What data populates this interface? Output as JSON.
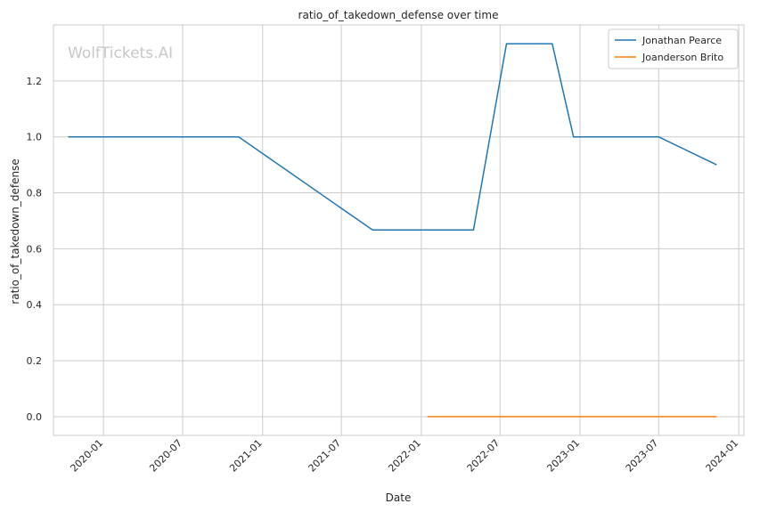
{
  "chart_data": {
    "type": "line",
    "title": "ratio_of_takedown_defense over time",
    "xlabel": "Date",
    "ylabel": "ratio_of_takedown_defense",
    "watermark": "WolfTickets.AI",
    "x_ticks": [
      "2020-01",
      "2020-07",
      "2021-01",
      "2021-07",
      "2022-01",
      "2022-07",
      "2023-01",
      "2023-07",
      "2024-01"
    ],
    "y_ticks": [
      "0.0",
      "0.2",
      "0.4",
      "0.6",
      "0.8",
      "1.0",
      "1.2"
    ],
    "xlim": [
      "2019-09-08",
      "2024-01-13"
    ],
    "ylim": [
      -0.067,
      1.4
    ],
    "grid": true,
    "legend_position": "top-right",
    "series": [
      {
        "name": "Jonathan Pearce",
        "color": "#1f77b4",
        "points": [
          {
            "x": "2019-10-12",
            "y": 1.0
          },
          {
            "x": "2020-11-07",
            "y": 1.0
          },
          {
            "x": "2021-09-11",
            "y": 0.667
          },
          {
            "x": "2022-05-01",
            "y": 0.667
          },
          {
            "x": "2022-07-16",
            "y": 1.333
          },
          {
            "x": "2022-10-29",
            "y": 1.333
          },
          {
            "x": "2022-12-17",
            "y": 1.0
          },
          {
            "x": "2023-07-01",
            "y": 1.0
          },
          {
            "x": "2023-11-11",
            "y": 0.9
          }
        ]
      },
      {
        "name": "Joanderson Brito",
        "color": "#ff7f0e",
        "points": [
          {
            "x": "2022-01-15",
            "y": 0.0
          },
          {
            "x": "2023-11-11",
            "y": 0.0
          }
        ]
      }
    ]
  }
}
